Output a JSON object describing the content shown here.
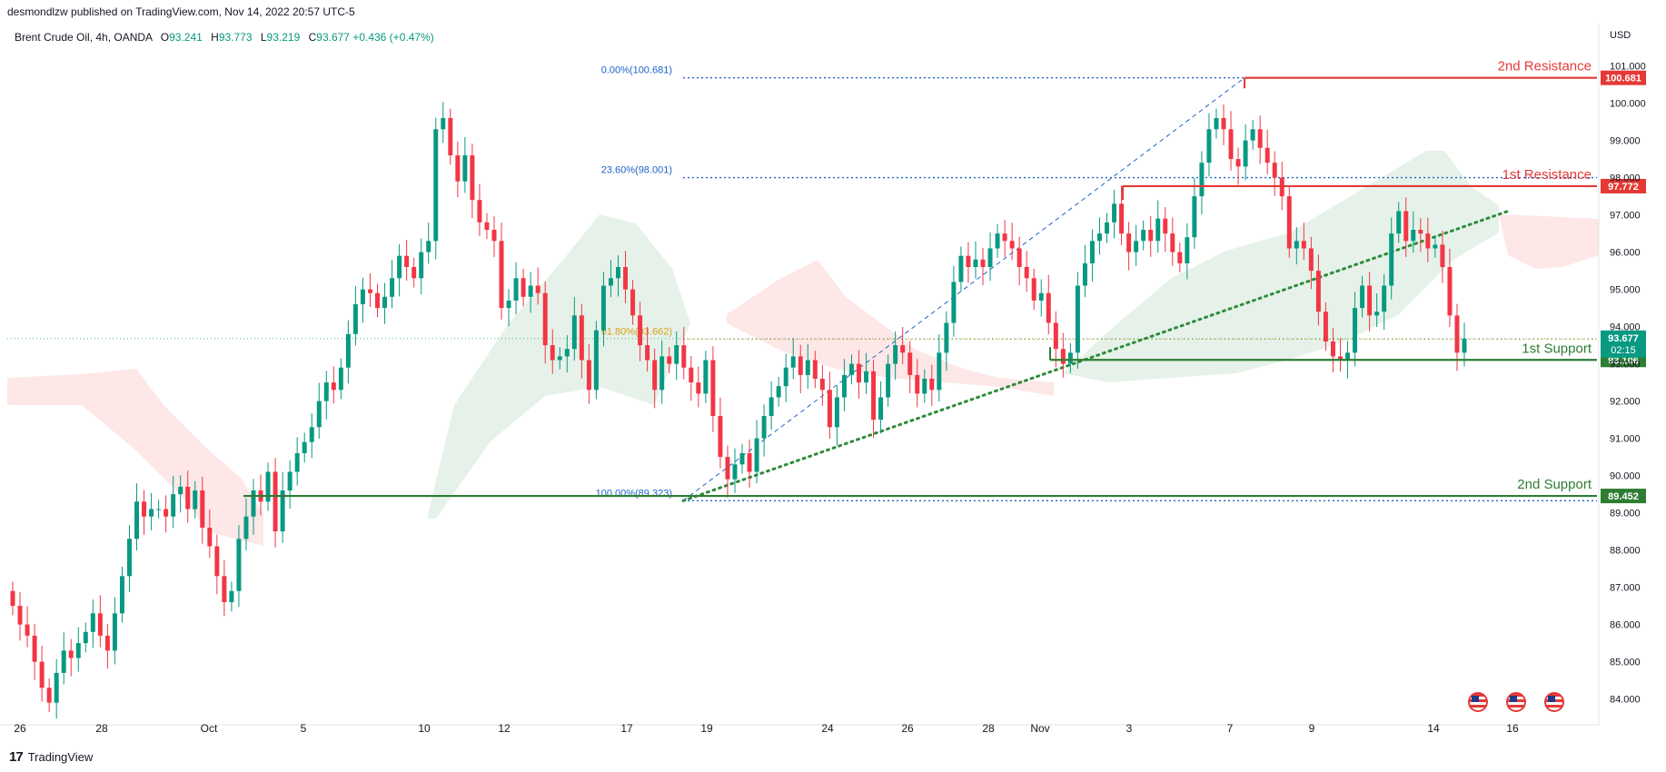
{
  "header": {
    "published": "desmondlzw published on TradingView.com, Nov 14, 2022 20:57 UTC-5"
  },
  "symbol": {
    "name": "Brent Crude Oil, 4h, OANDA",
    "open_label": "O",
    "open": "93.241",
    "high_label": "H",
    "high": "93.773",
    "low_label": "L",
    "low": "93.219",
    "close_label": "C",
    "close": "93.677",
    "change": "+0.436 (+0.47%)"
  },
  "footer": {
    "logo": "17",
    "brand": "TradingView"
  },
  "colors": {
    "up": "#089981",
    "down": "#f23645",
    "resistance": "#e53935",
    "support": "#2e7d32",
    "fib": "#1e63c8",
    "fib_618": "#d4a017",
    "cloud_green": "#e3f1e7",
    "cloud_red": "#fde4e4"
  },
  "chart_data": {
    "type": "candlestick",
    "currency": "USD",
    "ylim": [
      83.6,
      101.6
    ],
    "y_ticks": [
      "84.000",
      "85.000",
      "86.000",
      "87.000",
      "88.000",
      "89.000",
      "90.000",
      "91.000",
      "92.000",
      "93.000",
      "94.000",
      "95.000",
      "96.000",
      "97.000",
      "98.000",
      "99.000",
      "100.000",
      "101.000"
    ],
    "x_ticks": [
      "26",
      "28",
      "Oct",
      "5",
      "10",
      "12",
      "17",
      "19",
      "24",
      "26",
      "28",
      "Nov",
      "3",
      "7",
      "9",
      "14",
      "16"
    ],
    "price_levels": [
      {
        "label": "2nd Resistance",
        "value": "100.681",
        "kind": "resistance"
      },
      {
        "label": "1st Resistance",
        "value": "97.772",
        "kind": "resistance"
      },
      {
        "label": "1st Support",
        "value": "93.106",
        "kind": "support"
      },
      {
        "label": "2nd Support",
        "value": "89.452",
        "kind": "support"
      }
    ],
    "current_price": {
      "value": "93.677",
      "countdown": "02:15"
    },
    "fibonacci": [
      {
        "label": "0.00%(100.681)",
        "value": 100.681
      },
      {
        "label": "23.60%(98.001)",
        "value": 98.001
      },
      {
        "label": "61.80%(93.662)",
        "value": 93.662
      },
      {
        "label": "100.00%(89.323)",
        "value": 89.323
      }
    ],
    "candles_close": [
      86.5,
      86.0,
      85.7,
      85.0,
      84.3,
      83.9,
      84.7,
      85.3,
      85.1,
      85.5,
      85.8,
      86.3,
      85.7,
      85.3,
      86.3,
      87.3,
      88.3,
      89.3,
      88.9,
      89.1,
      89.1,
      88.9,
      89.5,
      89.7,
      89.1,
      89.6,
      88.6,
      88.1,
      87.3,
      86.6,
      86.9,
      88.3,
      88.9,
      89.6,
      89.3,
      90.1,
      88.5,
      89.6,
      90.1,
      90.6,
      90.9,
      91.3,
      92.0,
      92.5,
      92.3,
      92.9,
      93.8,
      94.6,
      95.0,
      94.9,
      94.5,
      94.8,
      95.3,
      95.9,
      95.6,
      95.3,
      96.0,
      96.3,
      99.3,
      99.6,
      98.6,
      97.9,
      98.6,
      97.4,
      96.8,
      96.6,
      96.3,
      94.5,
      94.7,
      95.3,
      94.8,
      95.1,
      94.9,
      93.5,
      93.1,
      93.2,
      93.4,
      94.3,
      93.1,
      92.3,
      93.9,
      95.1,
      95.3,
      95.6,
      95.0,
      94.3,
      93.5,
      93.1,
      92.3,
      93.2,
      93.0,
      93.5,
      92.9,
      92.5,
      92.2,
      93.1,
      91.6,
      90.5,
      89.9,
      90.3,
      90.6,
      90.1,
      91.0,
      91.6,
      92.1,
      92.4,
      92.9,
      93.2,
      92.7,
      93.1,
      92.6,
      92.3,
      91.3,
      92.1,
      92.7,
      93.0,
      92.5,
      92.8,
      91.5,
      92.1,
      93.0,
      93.5,
      93.3,
      92.7,
      92.2,
      92.6,
      92.3,
      93.3,
      94.1,
      95.2,
      95.9,
      95.6,
      95.8,
      95.6,
      96.1,
      96.5,
      96.3,
      96.1,
      95.6,
      95.3,
      94.7,
      94.9,
      94.1,
      93.4,
      93.0,
      93.3,
      95.1,
      95.7,
      96.3,
      96.5,
      96.8,
      97.3,
      96.5,
      96.0,
      96.3,
      96.6,
      96.3,
      96.9,
      96.5,
      96.0,
      95.7,
      96.4,
      97.5,
      98.4,
      99.3,
      99.6,
      99.3,
      98.5,
      98.3,
      99.0,
      99.3,
      98.8,
      98.4,
      98.0,
      97.5,
      96.1,
      96.3,
      96.1,
      95.5,
      94.4,
      93.6,
      93.2,
      93.1,
      93.3,
      94.5,
      95.1,
      94.3,
      94.4,
      95.1,
      96.5,
      97.1,
      96.3,
      96.6,
      96.5,
      96.1,
      96.2,
      95.6,
      94.3,
      93.3,
      93.677
    ],
    "ichimoku_cloud": "shaded"
  }
}
